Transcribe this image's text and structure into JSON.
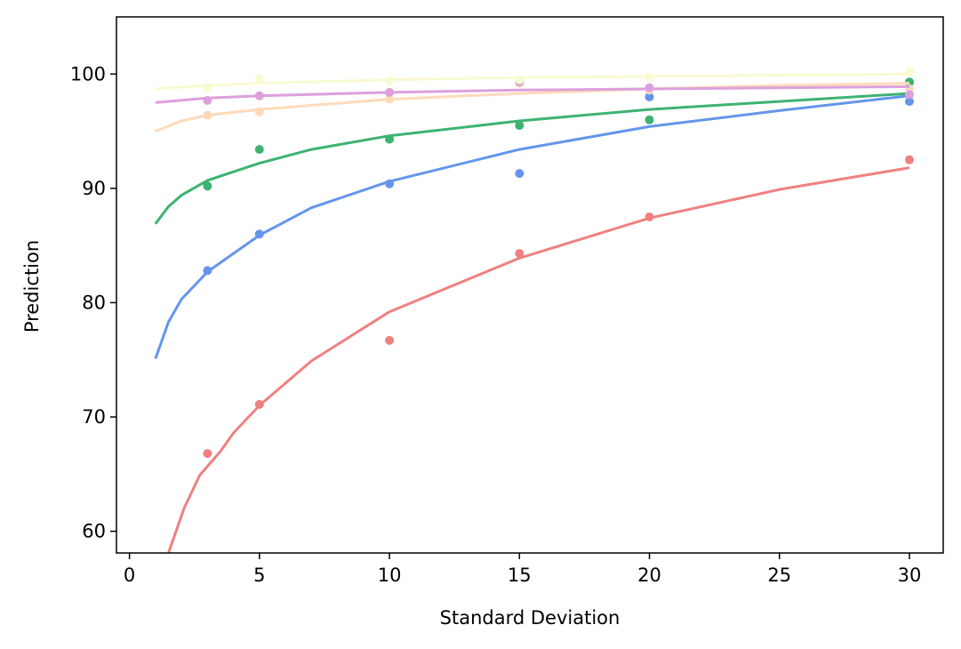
{
  "chart_data": {
    "type": "scatter",
    "title": "",
    "xlabel": "Standard Deviation",
    "ylabel": "Prediction",
    "xlim": [
      -0.5,
      31.3
    ],
    "ylim": [
      58.1,
      105
    ],
    "xticks": [
      0,
      5,
      10,
      15,
      20,
      25,
      30
    ],
    "yticks": [
      60,
      70,
      80,
      90,
      100
    ],
    "grid": false,
    "legend": "none",
    "series": [
      {
        "color": "#f08080",
        "points": [
          {
            "x": 3,
            "y": 66.8
          },
          {
            "x": 5,
            "y": 71.1
          },
          {
            "x": 10,
            "y": 76.7
          },
          {
            "x": 15,
            "y": 84.3
          },
          {
            "x": 20,
            "y": 87.5
          },
          {
            "x": 30,
            "y": 92.5
          }
        ],
        "curve": [
          {
            "x": 1.5,
            "y": 58.1
          },
          {
            "x": 2.1,
            "y": 62.0
          },
          {
            "x": 2.7,
            "y": 64.9
          },
          {
            "x": 3.5,
            "y": 67.0
          },
          {
            "x": 4.0,
            "y": 68.6
          },
          {
            "x": 5,
            "y": 71.0
          },
          {
            "x": 7,
            "y": 74.9
          },
          {
            "x": 10,
            "y": 79.2
          },
          {
            "x": 15,
            "y": 83.9
          },
          {
            "x": 20,
            "y": 87.4
          },
          {
            "x": 25,
            "y": 89.9
          },
          {
            "x": 30,
            "y": 91.8
          }
        ]
      },
      {
        "color": "#6495ed",
        "points": [
          {
            "x": 3,
            "y": 82.8
          },
          {
            "x": 5,
            "y": 86.0
          },
          {
            "x": 10,
            "y": 90.4
          },
          {
            "x": 15,
            "y": 91.3
          },
          {
            "x": 20,
            "y": 98.0
          },
          {
            "x": 30,
            "y": 97.6
          }
        ],
        "curve": [
          {
            "x": 1,
            "y": 75.1
          },
          {
            "x": 1.5,
            "y": 78.3
          },
          {
            "x": 2,
            "y": 80.3
          },
          {
            "x": 3,
            "y": 82.7
          },
          {
            "x": 5,
            "y": 85.9
          },
          {
            "x": 7,
            "y": 88.3
          },
          {
            "x": 10,
            "y": 90.6
          },
          {
            "x": 15,
            "y": 93.4
          },
          {
            "x": 20,
            "y": 95.4
          },
          {
            "x": 25,
            "y": 96.8
          },
          {
            "x": 30,
            "y": 98.1
          }
        ]
      },
      {
        "color": "#3cb371",
        "points": [
          {
            "x": 3,
            "y": 90.2
          },
          {
            "x": 5,
            "y": 93.4
          },
          {
            "x": 10,
            "y": 94.3
          },
          {
            "x": 15,
            "y": 95.5
          },
          {
            "x": 20,
            "y": 96.0
          },
          {
            "x": 30,
            "y": 99.3
          }
        ],
        "curve": [
          {
            "x": 1,
            "y": 86.9
          },
          {
            "x": 1.5,
            "y": 88.4
          },
          {
            "x": 2,
            "y": 89.4
          },
          {
            "x": 3,
            "y": 90.7
          },
          {
            "x": 5,
            "y": 92.2
          },
          {
            "x": 7,
            "y": 93.4
          },
          {
            "x": 10,
            "y": 94.6
          },
          {
            "x": 15,
            "y": 95.9
          },
          {
            "x": 20,
            "y": 96.9
          },
          {
            "x": 25,
            "y": 97.6
          },
          {
            "x": 30,
            "y": 98.3
          }
        ]
      },
      {
        "color": "#ffdab9",
        "points": [
          {
            "x": 3,
            "y": 96.4
          },
          {
            "x": 5,
            "y": 96.7
          },
          {
            "x": 10,
            "y": 97.8
          },
          {
            "x": 15,
            "y": 99.2
          },
          {
            "x": 20,
            "y": 98.6
          },
          {
            "x": 30,
            "y": 98.7
          }
        ],
        "curve": [
          {
            "x": 1,
            "y": 95.0
          },
          {
            "x": 2,
            "y": 95.9
          },
          {
            "x": 3,
            "y": 96.4
          },
          {
            "x": 5,
            "y": 96.9
          },
          {
            "x": 10,
            "y": 97.8
          },
          {
            "x": 15,
            "y": 98.3
          },
          {
            "x": 20,
            "y": 98.7
          },
          {
            "x": 25,
            "y": 99.0
          },
          {
            "x": 30,
            "y": 99.2
          }
        ]
      },
      {
        "color": "#dda0dd",
        "points": [
          {
            "x": 3,
            "y": 97.7
          },
          {
            "x": 5,
            "y": 98.1
          },
          {
            "x": 10,
            "y": 98.4
          },
          {
            "x": 15,
            "y": 99.3
          },
          {
            "x": 20,
            "y": 98.8
          },
          {
            "x": 30,
            "y": 98.2
          }
        ],
        "curve": [
          {
            "x": 1,
            "y": 97.5
          },
          {
            "x": 3,
            "y": 97.9
          },
          {
            "x": 5,
            "y": 98.1
          },
          {
            "x": 10,
            "y": 98.4
          },
          {
            "x": 15,
            "y": 98.6
          },
          {
            "x": 20,
            "y": 98.7
          },
          {
            "x": 25,
            "y": 98.8
          },
          {
            "x": 30,
            "y": 98.9
          }
        ]
      },
      {
        "color": "#fafad2",
        "points": [
          {
            "x": 3,
            "y": 98.8
          },
          {
            "x": 5,
            "y": 99.6
          },
          {
            "x": 10,
            "y": 99.4
          },
          {
            "x": 15,
            "y": 99.5
          },
          {
            "x": 20,
            "y": 99.7
          },
          {
            "x": 30,
            "y": 100.2
          }
        ],
        "curve": [
          {
            "x": 1,
            "y": 98.7
          },
          {
            "x": 3,
            "y": 99.0
          },
          {
            "x": 5,
            "y": 99.2
          },
          {
            "x": 10,
            "y": 99.5
          },
          {
            "x": 15,
            "y": 99.7
          },
          {
            "x": 20,
            "y": 99.8
          },
          {
            "x": 25,
            "y": 99.9
          },
          {
            "x": 30,
            "y": 100.0
          }
        ]
      }
    ]
  }
}
